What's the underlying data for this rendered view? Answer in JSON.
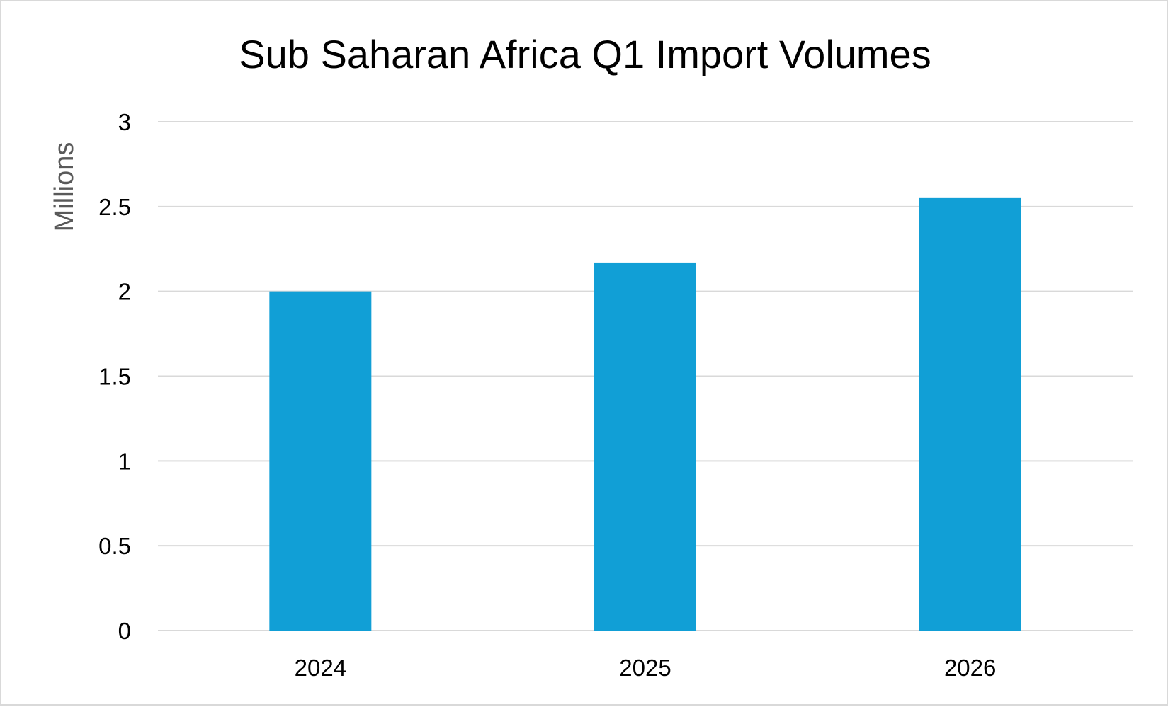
{
  "chart_data": {
    "type": "bar",
    "title": "Sub Saharan Africa Q1 Import Volumes",
    "xlabel": "",
    "ylabel": "Millions",
    "categories": [
      "2024",
      "2025",
      "2026"
    ],
    "values": [
      2.0,
      2.17,
      2.55
    ],
    "ylim": [
      0,
      3
    ],
    "yticks": [
      "0",
      "0.5",
      "1",
      "1.5",
      "2",
      "2.5",
      "3"
    ],
    "grid": true,
    "legend": "none",
    "bar_color": "#119FD6"
  }
}
